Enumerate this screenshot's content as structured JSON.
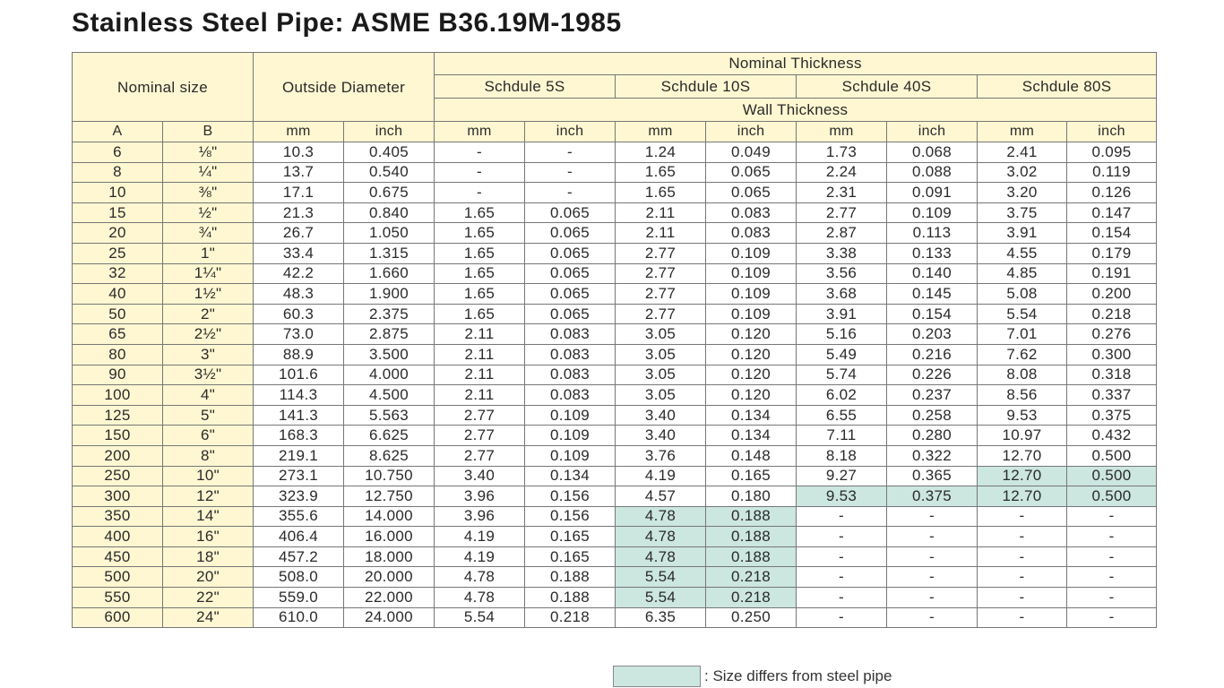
{
  "title": "Stainless Steel Pipe: ASME B36.19M-1985",
  "headers": {
    "nominal_size": "Nominal size",
    "outside_diameter": "Outside Diameter",
    "nominal_thickness": "Nominal Thickness",
    "wall_thickness": "Wall Thickness",
    "schedules": [
      "Schdule 5S",
      "Schdule 10S",
      "Schdule 40S",
      "Schdule 80S"
    ],
    "units": [
      "A",
      "B",
      "mm",
      "inch",
      "mm",
      "inch",
      "mm",
      "inch",
      "mm",
      "inch",
      "mm",
      "inch"
    ]
  },
  "colors": {
    "header_bg": "#fff7d2",
    "highlight": "#cce6e0",
    "border": "#777777"
  },
  "rows": [
    [
      "6",
      "⅛\"",
      "10.3",
      "0.405",
      "-",
      "-",
      "1.24",
      "0.049",
      "1.73",
      "0.068",
      "2.41",
      "0.095"
    ],
    [
      "8",
      "¼\"",
      "13.7",
      "0.540",
      "-",
      "-",
      "1.65",
      "0.065",
      "2.24",
      "0.088",
      "3.02",
      "0.119"
    ],
    [
      "10",
      "⅜\"",
      "17.1",
      "0.675",
      "-",
      "-",
      "1.65",
      "0.065",
      "2.31",
      "0.091",
      "3.20",
      "0.126"
    ],
    [
      "15",
      "½\"",
      "21.3",
      "0.840",
      "1.65",
      "0.065",
      "2.11",
      "0.083",
      "2.77",
      "0.109",
      "3.75",
      "0.147"
    ],
    [
      "20",
      "¾\"",
      "26.7",
      "1.050",
      "1.65",
      "0.065",
      "2.11",
      "0.083",
      "2.87",
      "0.113",
      "3.91",
      "0.154"
    ],
    [
      "25",
      "1\"",
      "33.4",
      "1.315",
      "1.65",
      "0.065",
      "2.77",
      "0.109",
      "3.38",
      "0.133",
      "4.55",
      "0.179"
    ],
    [
      "32",
      "1¼\"",
      "42.2",
      "1.660",
      "1.65",
      "0.065",
      "2.77",
      "0.109",
      "3.56",
      "0.140",
      "4.85",
      "0.191"
    ],
    [
      "40",
      "1½\"",
      "48.3",
      "1.900",
      "1.65",
      "0.065",
      "2.77",
      "0.109",
      "3.68",
      "0.145",
      "5.08",
      "0.200"
    ],
    [
      "50",
      "2\"",
      "60.3",
      "2.375",
      "1.65",
      "0.065",
      "2.77",
      "0.109",
      "3.91",
      "0.154",
      "5.54",
      "0.218"
    ],
    [
      "65",
      "2½\"",
      "73.0",
      "2.875",
      "2.11",
      "0.083",
      "3.05",
      "0.120",
      "5.16",
      "0.203",
      "7.01",
      "0.276"
    ],
    [
      "80",
      "3\"",
      "88.9",
      "3.500",
      "2.11",
      "0.083",
      "3.05",
      "0.120",
      "5.49",
      "0.216",
      "7.62",
      "0.300"
    ],
    [
      "90",
      "3½\"",
      "101.6",
      "4.000",
      "2.11",
      "0.083",
      "3.05",
      "0.120",
      "5.74",
      "0.226",
      "8.08",
      "0.318"
    ],
    [
      "100",
      "4\"",
      "114.3",
      "4.500",
      "2.11",
      "0.083",
      "3.05",
      "0.120",
      "6.02",
      "0.237",
      "8.56",
      "0.337"
    ],
    [
      "125",
      "5\"",
      "141.3",
      "5.563",
      "2.77",
      "0.109",
      "3.40",
      "0.134",
      "6.55",
      "0.258",
      "9.53",
      "0.375"
    ],
    [
      "150",
      "6\"",
      "168.3",
      "6.625",
      "2.77",
      "0.109",
      "3.40",
      "0.134",
      "7.11",
      "0.280",
      "10.97",
      "0.432"
    ],
    [
      "200",
      "8\"",
      "219.1",
      "8.625",
      "2.77",
      "0.109",
      "3.76",
      "0.148",
      "8.18",
      "0.322",
      "12.70",
      "0.500"
    ],
    [
      "250",
      "10\"",
      "273.1",
      "10.750",
      "3.40",
      "0.134",
      "4.19",
      "0.165",
      "9.27",
      "0.365",
      "12.70",
      "0.500"
    ],
    [
      "300",
      "12\"",
      "323.9",
      "12.750",
      "3.96",
      "0.156",
      "4.57",
      "0.180",
      "9.53",
      "0.375",
      "12.70",
      "0.500"
    ],
    [
      "350",
      "14\"",
      "355.6",
      "14.000",
      "3.96",
      "0.156",
      "4.78",
      "0.188",
      "-",
      "-",
      "-",
      "-"
    ],
    [
      "400",
      "16\"",
      "406.4",
      "16.000",
      "4.19",
      "0.165",
      "4.78",
      "0.188",
      "-",
      "-",
      "-",
      "-"
    ],
    [
      "450",
      "18\"",
      "457.2",
      "18.000",
      "4.19",
      "0.165",
      "4.78",
      "0.188",
      "-",
      "-",
      "-",
      "-"
    ],
    [
      "500",
      "20\"",
      "508.0",
      "20.000",
      "4.78",
      "0.188",
      "5.54",
      "0.218",
      "-",
      "-",
      "-",
      "-"
    ],
    [
      "550",
      "22\"",
      "559.0",
      "22.000",
      "4.78",
      "0.188",
      "5.54",
      "0.218",
      "-",
      "-",
      "-",
      "-"
    ],
    [
      "600",
      "24\"",
      "610.0",
      "24.000",
      "5.54",
      "0.218",
      "6.35",
      "0.250",
      "-",
      "-",
      "-",
      "-"
    ]
  ],
  "highlighted_cells": [
    [
      16,
      10
    ],
    [
      16,
      11
    ],
    [
      17,
      8
    ],
    [
      17,
      9
    ],
    [
      17,
      10
    ],
    [
      17,
      11
    ],
    [
      18,
      6
    ],
    [
      18,
      7
    ],
    [
      19,
      6
    ],
    [
      19,
      7
    ],
    [
      20,
      6
    ],
    [
      20,
      7
    ],
    [
      21,
      6
    ],
    [
      21,
      7
    ],
    [
      22,
      6
    ],
    [
      22,
      7
    ]
  ],
  "legend": {
    "text": ": Size differs from steel pipe"
  }
}
